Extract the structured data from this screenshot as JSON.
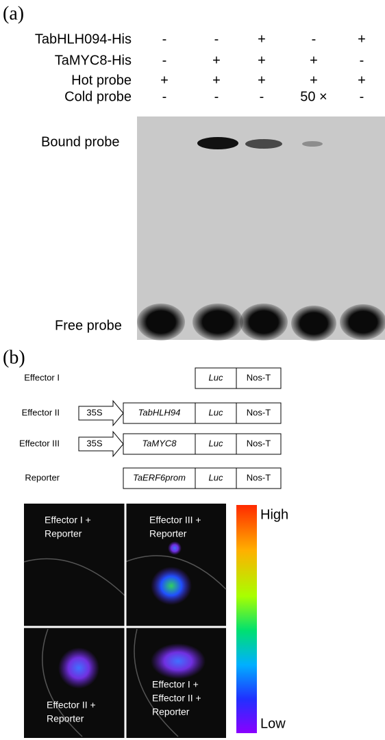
{
  "panel_a": {
    "label": "(a)",
    "rows": [
      {
        "name": "TabHLH094-His",
        "values": [
          "-",
          "-",
          "+",
          "-",
          "+"
        ]
      },
      {
        "name": "TaMYC8-His",
        "values": [
          "-",
          "+",
          "+",
          "+",
          "-"
        ]
      },
      {
        "name": "Hot probe",
        "values": [
          "+",
          "+",
          "+",
          "+",
          "+"
        ]
      },
      {
        "name": "Cold probe",
        "values": [
          "-",
          "-",
          "-",
          "50 ×",
          "-"
        ]
      }
    ],
    "gel_labels": [
      "Bound probe",
      "Free probe"
    ]
  },
  "panel_b": {
    "label": "(b)",
    "constructs": [
      {
        "name": "Effector I",
        "parts": [
          {
            "text": "Luc",
            "italic": true
          },
          {
            "text": "Nos-T",
            "italic": false
          }
        ]
      },
      {
        "name": "Effector II",
        "promoter": "35S",
        "parts": [
          {
            "text": "TabHLH94",
            "italic": true
          },
          {
            "text": "Luc",
            "italic": true
          },
          {
            "text": "Nos-T",
            "italic": false
          }
        ]
      },
      {
        "name": "Effector III",
        "promoter": "35S",
        "parts": [
          {
            "text": "TaMYC8",
            "italic": true
          },
          {
            "text": "Luc",
            "italic": true
          },
          {
            "text": "Nos-T",
            "italic": false
          }
        ]
      },
      {
        "name": "Reporter",
        "parts": [
          {
            "text": "TaERF6prom",
            "italic": true
          },
          {
            "text": "Luc",
            "italic": true
          },
          {
            "text": "Nos-T",
            "italic": false
          }
        ]
      }
    ],
    "images": [
      {
        "lines": [
          "Effector I +",
          "Reporter"
        ]
      },
      {
        "lines": [
          "Effector III +",
          "Reporter"
        ]
      },
      {
        "lines": [
          "Effector II +",
          "Reporter"
        ]
      },
      {
        "lines": [
          "Effector I +",
          "Effector II +",
          "Reporter"
        ]
      }
    ],
    "colorbar": {
      "high": "High",
      "low": "Low"
    }
  }
}
